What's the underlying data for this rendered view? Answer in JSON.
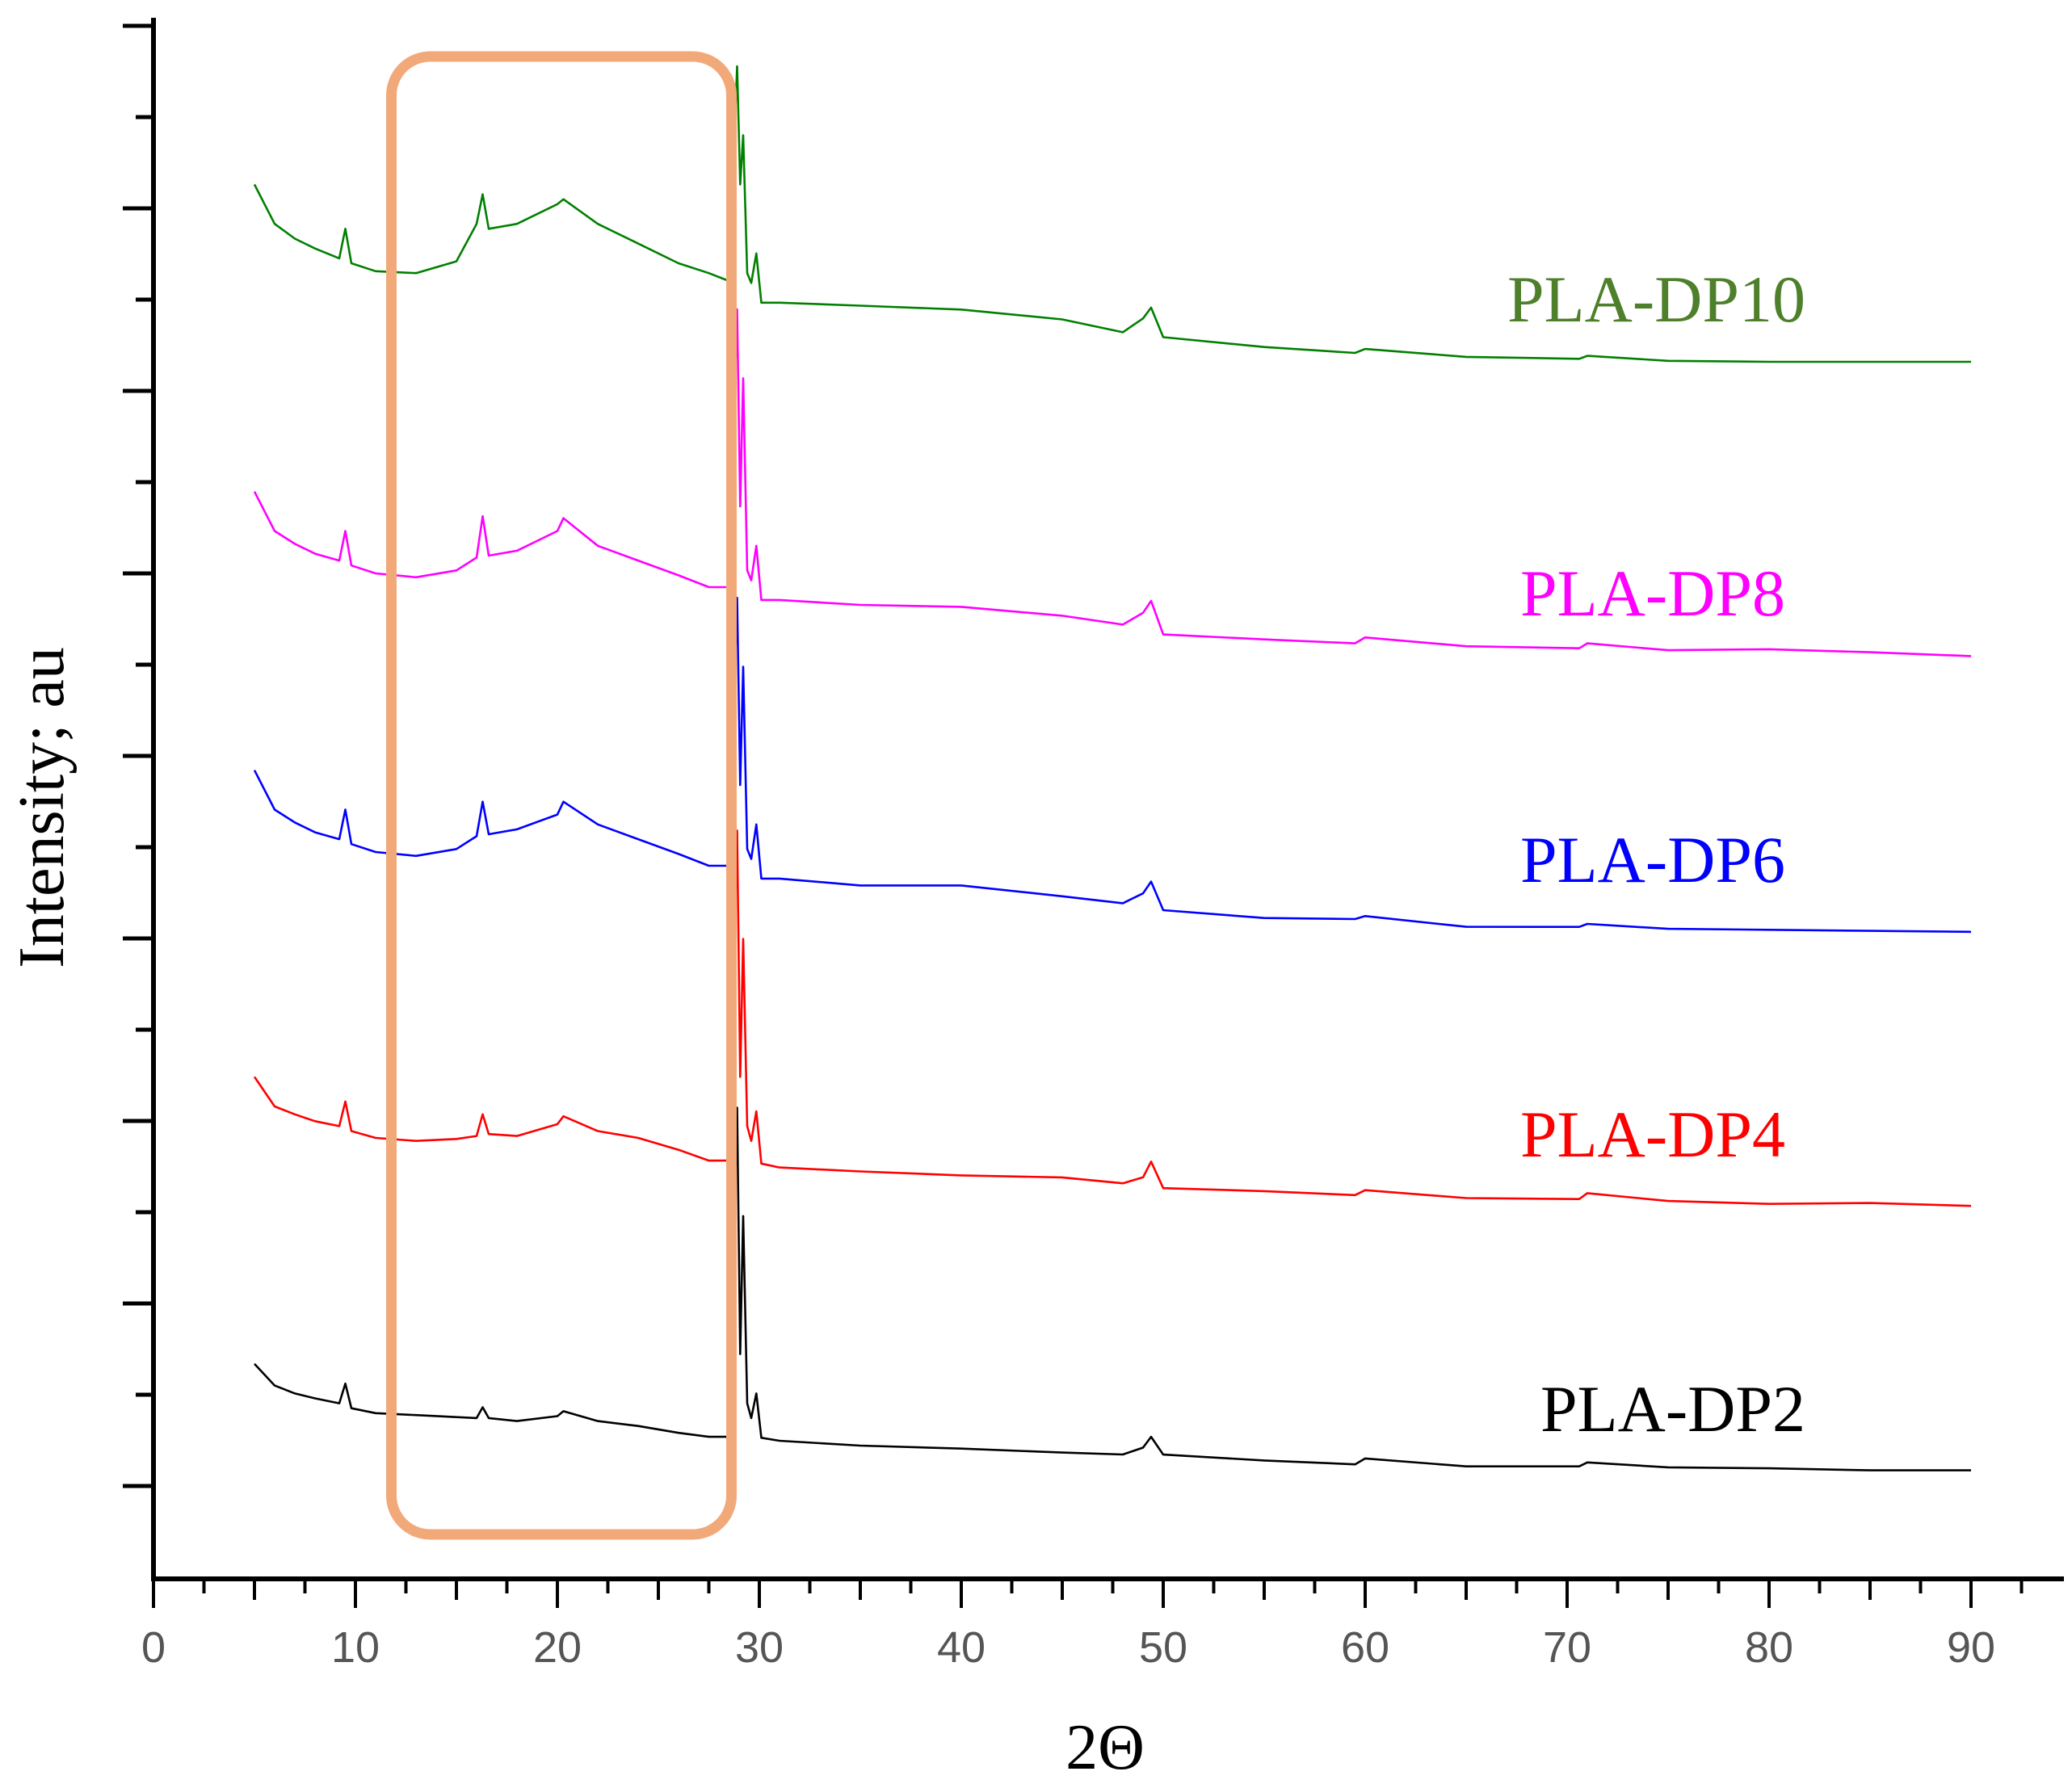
{
  "chart_data": {
    "type": "line",
    "title": "",
    "xlabel": "2Θ",
    "ylabel": "Intensity; au",
    "xlim": [
      0,
      95
    ],
    "xticks": [
      0,
      10,
      20,
      30,
      40,
      50,
      60,
      70,
      80,
      90
    ],
    "y_tick_labels": "none",
    "grid": false,
    "highlight_region": {
      "x_range": [
        12.5,
        27.5
      ],
      "color": "#F2A97A",
      "shape": "rounded-rectangle"
    },
    "series": [
      {
        "name": "PLA-DP2",
        "color": "#000000",
        "offset": 0,
        "x": [
          5,
          6,
          7,
          8,
          9.2,
          9.5,
          9.8,
          11,
          13,
          15,
          16,
          16.3,
          16.6,
          18,
          20,
          20.3,
          22,
          24,
          26,
          27.5,
          28.5,
          28.9,
          29.05,
          29.2,
          29.4,
          29.6,
          29.85,
          30.1,
          31,
          35,
          40,
          45,
          48,
          49,
          49.4,
          50,
          55,
          59.5,
          60,
          65,
          70.6,
          71,
          75,
          80,
          85,
          90
        ],
        "values": [
          1.1,
          0.88,
          0.8,
          0.75,
          0.7,
          0.9,
          0.65,
          0.6,
          0.58,
          0.56,
          0.55,
          0.66,
          0.55,
          0.52,
          0.57,
          0.62,
          0.52,
          0.47,
          0.4,
          0.36,
          0.36,
          3.7,
          1.2,
          2.6,
          0.7,
          0.55,
          0.8,
          0.35,
          0.32,
          0.28,
          0.24,
          0.2,
          0.18,
          0.24,
          0.36,
          0.16,
          0.12,
          0.1,
          0.14,
          0.07,
          0.06,
          0.1,
          0.05,
          0.03,
          0.02,
          0.0
        ]
      },
      {
        "name": "PLA-DP4",
        "color": "#FF0000",
        "offset": 1,
        "x": [
          5,
          6,
          7,
          8,
          9.2,
          9.5,
          9.8,
          11,
          13,
          15,
          16,
          16.3,
          16.6,
          18,
          20,
          20.3,
          22,
          24,
          26,
          27.5,
          28.5,
          28.9,
          29.05,
          29.2,
          29.4,
          29.6,
          29.85,
          30.1,
          31,
          35,
          40,
          45,
          48,
          49,
          49.4,
          50,
          55,
          59.5,
          60,
          65,
          70.6,
          71,
          75,
          80,
          85,
          90
        ],
        "values": [
          1.3,
          1.0,
          0.92,
          0.85,
          0.8,
          1.05,
          0.75,
          0.68,
          0.65,
          0.67,
          0.7,
          0.92,
          0.72,
          0.7,
          0.82,
          0.9,
          0.75,
          0.68,
          0.56,
          0.45,
          0.45,
          3.8,
          1.3,
          2.7,
          0.8,
          0.65,
          0.95,
          0.42,
          0.38,
          0.33,
          0.3,
          0.26,
          0.22,
          0.3,
          0.44,
          0.18,
          0.14,
          0.1,
          0.15,
          0.06,
          0.06,
          0.1,
          0.04,
          0.03,
          0.02,
          0.0
        ]
      },
      {
        "name": "PLA-DP6",
        "color": "#0000FF",
        "offset": 2,
        "x": [
          5,
          6,
          7,
          8,
          9.2,
          9.5,
          9.8,
          11,
          13,
          15,
          16,
          16.3,
          16.6,
          18,
          20,
          20.3,
          22,
          24,
          26,
          27.5,
          28.5,
          28.9,
          29.05,
          29.2,
          29.4,
          29.6,
          29.85,
          30.1,
          31,
          35,
          40,
          45,
          48,
          49,
          49.4,
          50,
          55,
          59.5,
          60,
          65,
          70.6,
          71,
          75,
          80,
          85,
          90
        ],
        "values": [
          1.65,
          1.25,
          1.12,
          1.02,
          0.95,
          1.25,
          0.9,
          0.82,
          0.78,
          0.85,
          0.98,
          1.33,
          1.0,
          1.05,
          1.2,
          1.33,
          1.1,
          0.95,
          0.8,
          0.68,
          0.68,
          3.4,
          1.5,
          2.7,
          0.85,
          0.75,
          1.1,
          0.55,
          0.55,
          0.5,
          0.48,
          0.38,
          0.3,
          0.4,
          0.52,
          0.22,
          0.15,
          0.12,
          0.17,
          0.08,
          0.06,
          0.1,
          0.04,
          0.03,
          0.02,
          0.0
        ]
      },
      {
        "name": "PLA-DP8",
        "color": "#FF00FF",
        "offset": 3,
        "x": [
          5,
          6,
          7,
          8,
          9.2,
          9.5,
          9.8,
          11,
          13,
          15,
          16,
          16.3,
          16.6,
          18,
          20,
          20.3,
          22,
          24,
          26,
          27.5,
          28.5,
          28.9,
          29.05,
          29.2,
          29.4,
          29.6,
          29.85,
          30.1,
          31,
          35,
          40,
          45,
          48,
          49,
          49.4,
          50,
          55,
          59.5,
          60,
          65,
          70.6,
          71,
          75,
          80,
          85,
          90
        ],
        "values": [
          1.65,
          1.25,
          1.12,
          1.02,
          0.95,
          1.25,
          0.9,
          0.82,
          0.78,
          0.85,
          0.98,
          1.4,
          1.0,
          1.05,
          1.25,
          1.38,
          1.1,
          0.95,
          0.8,
          0.68,
          0.68,
          3.5,
          1.5,
          2.8,
          0.85,
          0.75,
          1.1,
          0.55,
          0.55,
          0.5,
          0.48,
          0.38,
          0.3,
          0.4,
          0.54,
          0.22,
          0.15,
          0.12,
          0.17,
          0.08,
          0.06,
          0.1,
          0.04,
          0.03,
          0.02,
          0.0
        ]
      },
      {
        "name": "PLA-DP10",
        "color": "#008000",
        "offset": 4,
        "x": [
          5,
          6,
          7,
          8,
          9.2,
          9.5,
          9.8,
          11,
          13,
          15,
          16,
          16.3,
          16.6,
          18,
          20,
          20.3,
          22,
          24,
          26,
          27.5,
          28.5,
          28.9,
          29.05,
          29.2,
          29.4,
          29.6,
          29.85,
          30.1,
          31,
          35,
          40,
          45,
          48,
          49,
          49.4,
          50,
          55,
          59.5,
          60,
          65,
          70.6,
          71,
          75,
          80,
          85,
          90
        ],
        "values": [
          1.8,
          1.4,
          1.25,
          1.15,
          1.05,
          1.35,
          1.0,
          0.92,
          0.9,
          1.02,
          1.4,
          1.7,
          1.35,
          1.4,
          1.6,
          1.65,
          1.4,
          1.2,
          1.0,
          0.9,
          0.82,
          3.0,
          1.8,
          2.3,
          0.9,
          0.8,
          1.1,
          0.6,
          0.6,
          0.55,
          0.53,
          0.45,
          0.3,
          0.45,
          0.55,
          0.25,
          0.15,
          0.08,
          0.13,
          0.03,
          0.03,
          0.08,
          0.01,
          0.01,
          0.0,
          0.0
        ]
      }
    ]
  }
}
